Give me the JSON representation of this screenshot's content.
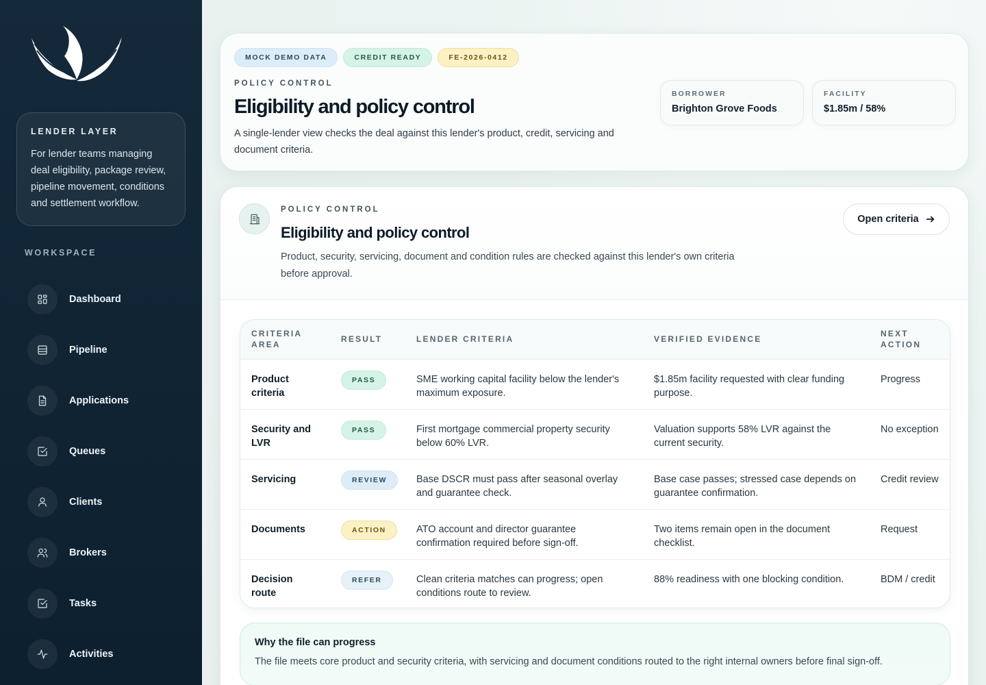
{
  "sidebar": {
    "logo_icon": "wings-logo-icon",
    "layer_card": {
      "title": "LENDER LAYER",
      "text": "For lender teams managing deal eligibility, package review, pipeline movement, conditions and settlement workflow."
    },
    "workspace_label": "WORKSPACE",
    "items": [
      {
        "label": "Dashboard",
        "icon": "grid-icon"
      },
      {
        "label": "Pipeline",
        "icon": "pipeline-icon"
      },
      {
        "label": "Applications",
        "icon": "document-icon"
      },
      {
        "label": "Queues",
        "icon": "checkbox-icon"
      },
      {
        "label": "Clients",
        "icon": "user-icon"
      },
      {
        "label": "Brokers",
        "icon": "users-icon"
      },
      {
        "label": "Tasks",
        "icon": "checkbox-icon"
      },
      {
        "label": "Activities",
        "icon": "activity-icon"
      }
    ]
  },
  "hero": {
    "badges": [
      "MOCK DEMO DATA",
      "CREDIT READY",
      "FE-2026-0412"
    ],
    "eyebrow": "POLICY CONTROL",
    "title": "Eligibility and policy control",
    "text": "A single-lender view checks the deal against this lender's product, credit, servicing and document criteria.",
    "borrower": {
      "label": "BORROWER",
      "value": "Brighton Grove Foods"
    },
    "facility": {
      "label": "FACILITY",
      "value": "$1.85m / 58%"
    }
  },
  "panel": {
    "icon": "building-icon",
    "eyebrow": "POLICY CONTROL",
    "title": "Eligibility and policy control",
    "text": "Product, security, servicing, document and condition rules are checked against this lender's own criteria before approval.",
    "open_button": "Open criteria",
    "table": {
      "headers": [
        "CRITERIA AREA",
        "RESULT",
        "LENDER CRITERIA",
        "VERIFIED EVIDENCE",
        "NEXT ACTION"
      ],
      "rows": [
        {
          "area": "Product criteria",
          "result": "PASS",
          "criteria": "SME working capital facility below the lender's maximum exposure.",
          "evidence": "$1.85m facility requested with clear funding purpose.",
          "action": "Progress"
        },
        {
          "area": "Security and LVR",
          "result": "PASS",
          "criteria": "First mortgage commercial property security below 60% LVR.",
          "evidence": "Valuation supports 58% LVR against the current security.",
          "action": "No exception"
        },
        {
          "area": "Servicing",
          "result": "REVIEW",
          "criteria": "Base DSCR must pass after seasonal overlay and guarantee check.",
          "evidence": "Base case passes; stressed case depends on guarantee confirmation.",
          "action": "Credit review"
        },
        {
          "area": "Documents",
          "result": "ACTION",
          "criteria": "ATO account and director guarantee confirmation required before sign-off.",
          "evidence": "Two items remain open in the document checklist.",
          "action": "Request"
        },
        {
          "area": "Decision route",
          "result": "REFER",
          "criteria": "Clean criteria matches can progress; open conditions route to review.",
          "evidence": "88% readiness with one blocking condition.",
          "action": "BDM / credit"
        }
      ]
    },
    "why": {
      "title": "Why the file can progress",
      "text": "The file meets core product and security criteria, with servicing and document conditions routed to the right internal owners before final sign-off."
    }
  }
}
